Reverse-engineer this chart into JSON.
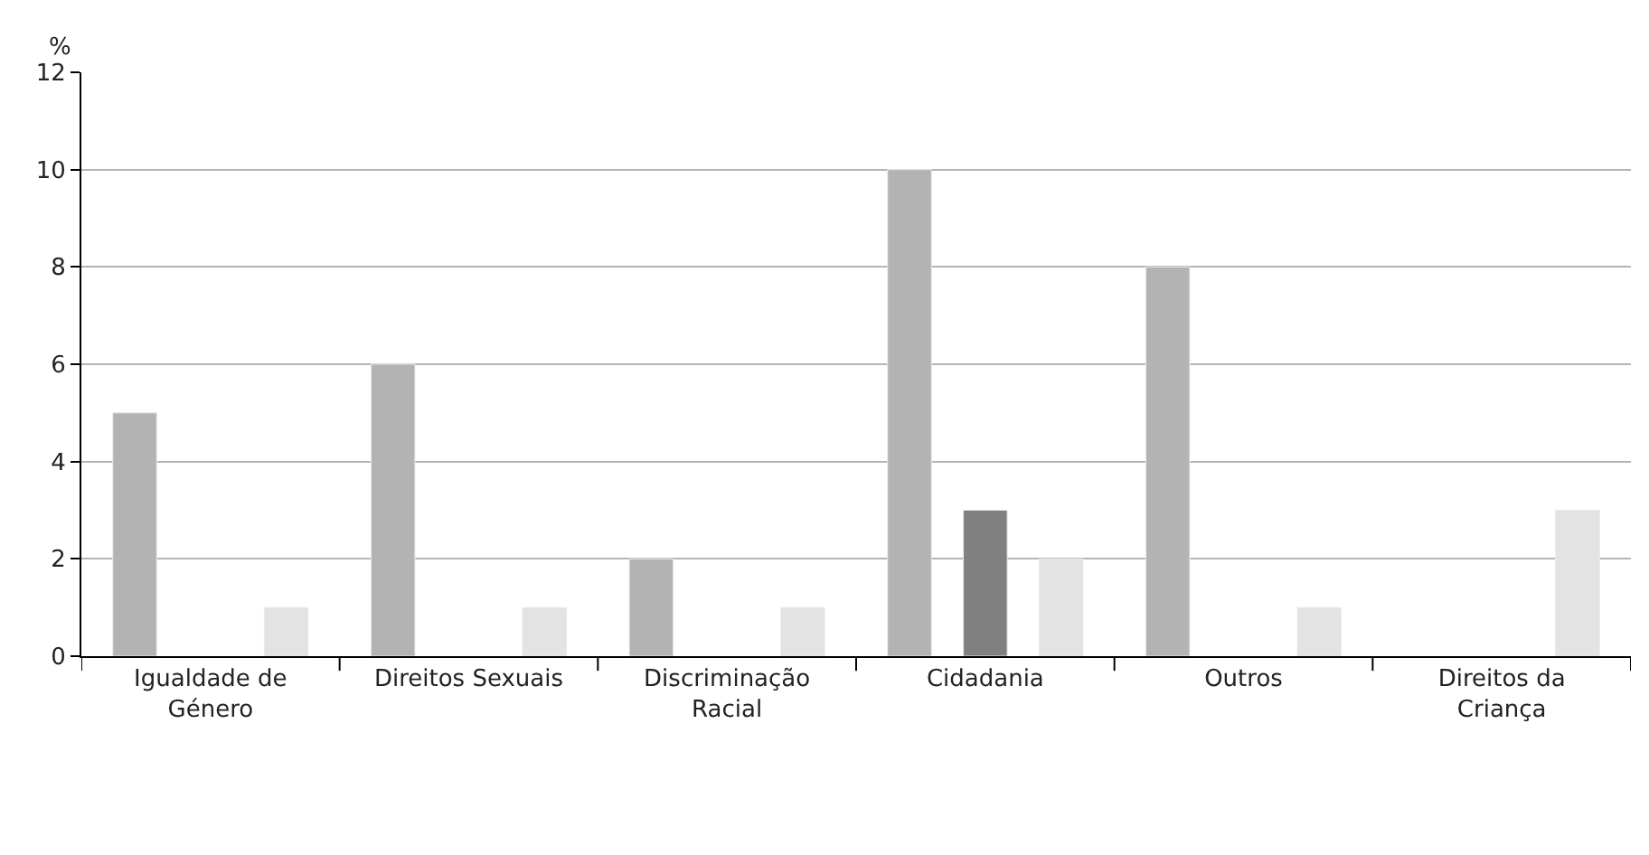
{
  "chart_data": {
    "type": "bar",
    "ylabel": "%",
    "categories": [
      "Igualdade de Género",
      "Direitos Sexuais",
      "Discriminação Racial",
      "Cidadania",
      "Outros",
      "Direitos da Criança"
    ],
    "series": [
      {
        "color": "#b3b3b3",
        "values": [
          5,
          6,
          2,
          10,
          8,
          null
        ]
      },
      {
        "color": "#808080",
        "values": [
          null,
          null,
          null,
          3,
          null,
          null
        ]
      },
      {
        "color": "#e3e3e3",
        "values": [
          1,
          1,
          1,
          2,
          1,
          3
        ]
      }
    ],
    "ylim": [
      0,
      12
    ],
    "yticks": [
      0,
      2,
      4,
      6,
      8,
      10,
      12
    ],
    "grid": "y"
  }
}
